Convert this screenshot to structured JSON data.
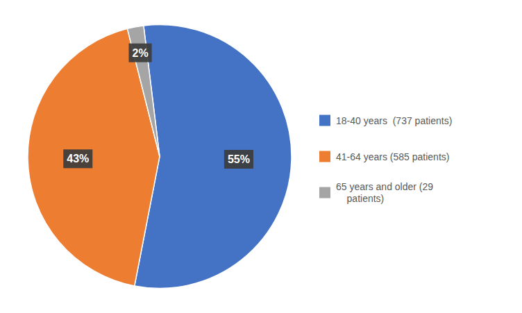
{
  "chart_data": {
    "type": "pie",
    "categories": [
      "18-40 years  (737 patients)",
      "41-64 years (585 patients)",
      "65 years and older (29\n    patients)"
    ],
    "values": [
      55,
      43,
      2
    ],
    "value_labels": [
      "55%",
      "43%",
      "2%"
    ],
    "colors": [
      "#4472C4",
      "#ED7D31",
      "#A5A5A5"
    ],
    "data_labels": true,
    "legend": "right"
  }
}
